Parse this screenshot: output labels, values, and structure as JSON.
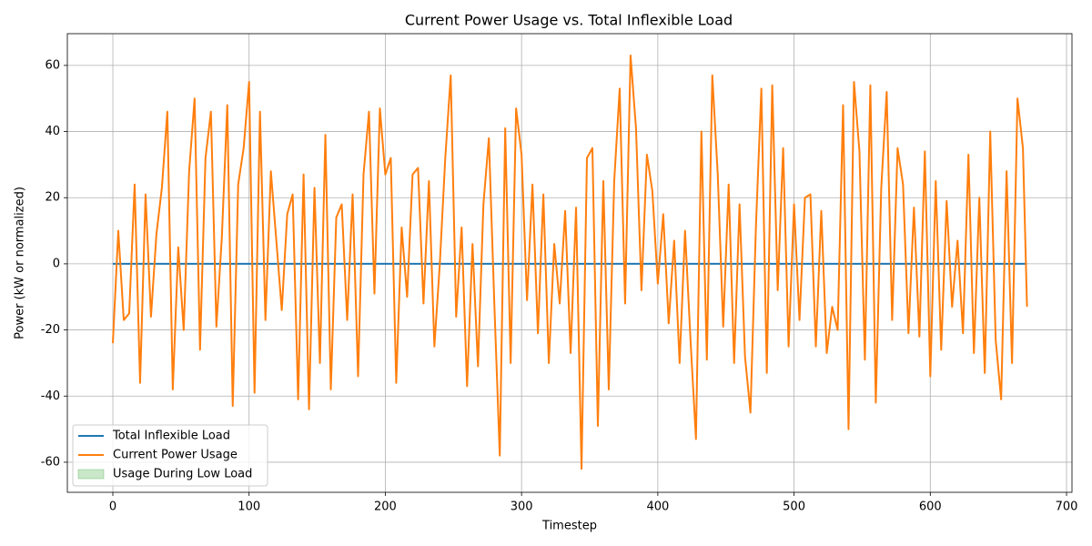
{
  "chart_data": {
    "type": "line",
    "title": "Current Power Usage vs. Total Inflexible Load",
    "x_label": "Timestep",
    "y_label": "Power (kW or normalized)",
    "x": [
      0,
      4,
      8,
      12,
      16,
      20,
      24,
      28,
      32,
      36,
      40,
      44,
      48,
      52,
      56,
      60,
      64,
      68,
      72,
      76,
      80,
      84,
      88,
      92,
      96,
      100,
      104,
      108,
      112,
      116,
      120,
      124,
      128,
      132,
      136,
      140,
      144,
      148,
      152,
      156,
      160,
      164,
      168,
      172,
      176,
      180,
      184,
      188,
      192,
      196,
      200,
      204,
      208,
      212,
      216,
      220,
      224,
      228,
      232,
      236,
      240,
      244,
      248,
      252,
      256,
      260,
      264,
      268,
      272,
      276,
      280,
      284,
      288,
      292,
      296,
      300,
      304,
      308,
      312,
      316,
      320,
      324,
      328,
      332,
      336,
      340,
      344,
      348,
      352,
      356,
      360,
      364,
      368,
      372,
      376,
      380,
      384,
      388,
      392,
      396,
      400,
      404,
      408,
      412,
      416,
      420,
      424,
      428,
      432,
      436,
      440,
      444,
      448,
      452,
      456,
      460,
      464,
      468,
      472,
      476,
      480,
      484,
      488,
      492,
      496,
      500,
      504,
      508,
      512,
      516,
      520,
      524,
      528,
      532,
      536,
      540,
      544,
      548,
      552,
      556,
      560,
      564,
      568,
      572,
      576,
      580,
      584,
      588,
      592,
      596,
      600,
      604,
      608,
      612,
      616,
      620,
      624,
      628,
      632,
      636,
      640,
      644,
      648,
      652,
      656,
      660,
      664,
      668,
      671
    ],
    "series": [
      {
        "name": "Total Inflexible Load",
        "color": "#1f77b4",
        "values": [
          0,
          0,
          0,
          0,
          0,
          0,
          0,
          0,
          0,
          0,
          0,
          0,
          0,
          0,
          0,
          0,
          0,
          0,
          0,
          0,
          0,
          0,
          0,
          0,
          0,
          0,
          0,
          0,
          0,
          0,
          0,
          0,
          0,
          0,
          0,
          0,
          0,
          0,
          0,
          0,
          0,
          0,
          0,
          0,
          0,
          0,
          0,
          0,
          0,
          0,
          0,
          0,
          0,
          0,
          0,
          0,
          0,
          0,
          0,
          0,
          0,
          0,
          0,
          0,
          0,
          0,
          0,
          0,
          0,
          0,
          0,
          0,
          0,
          0,
          0,
          0,
          0,
          0,
          0,
          0,
          0,
          0,
          0,
          0,
          0,
          0,
          0,
          0,
          0,
          0,
          0,
          0,
          0,
          0,
          0,
          0,
          0,
          0,
          0,
          0,
          0,
          0,
          0,
          0,
          0,
          0,
          0,
          0,
          0,
          0,
          0,
          0,
          0,
          0,
          0,
          0,
          0,
          0,
          0,
          0,
          0,
          0,
          0,
          0,
          0,
          0,
          0,
          0,
          0,
          0,
          0,
          0,
          0,
          0,
          0,
          0,
          0,
          0,
          0,
          0,
          0,
          0,
          0,
          0,
          0,
          0,
          0,
          0,
          0,
          0,
          0,
          0,
          0,
          0,
          0,
          0,
          0,
          0,
          0,
          0,
          0,
          0,
          0,
          0,
          0,
          0,
          0,
          0,
          0
        ]
      },
      {
        "name": "Current Power Usage",
        "color": "#ff7f0e",
        "values": [
          -24,
          10,
          -17,
          -15,
          24,
          -36,
          21,
          -16,
          9,
          23,
          46,
          -38,
          5,
          -20,
          28,
          50,
          -26,
          32,
          46,
          -19,
          8,
          48,
          -43,
          24,
          35,
          55,
          -39,
          46,
          -17,
          28,
          7,
          -14,
          15,
          21,
          -41,
          27,
          -44,
          23,
          -30,
          39,
          -38,
          14,
          18,
          -17,
          21,
          -34,
          27,
          46,
          -9,
          47,
          27,
          32,
          -36,
          11,
          -10,
          27,
          29,
          -12,
          25,
          -25,
          0,
          32,
          57,
          -16,
          11,
          -37,
          6,
          -31,
          18,
          38,
          -12,
          -58,
          41,
          -30,
          47,
          33,
          -11,
          24,
          -21,
          21,
          -30,
          6,
          -12,
          16,
          -27,
          17,
          -62,
          32,
          35,
          -49,
          25,
          -38,
          25,
          53,
          -12,
          63,
          41,
          -8,
          33,
          22,
          -6,
          15,
          -18,
          7,
          -30,
          10,
          -23,
          -53,
          40,
          -29,
          57,
          27,
          -19,
          24,
          -30,
          18,
          -28,
          -45,
          11,
          53,
          -33,
          54,
          -8,
          35,
          -25,
          18,
          -17,
          20,
          21,
          -25,
          16,
          -27,
          -13,
          -20,
          48,
          -50,
          55,
          34,
          -29,
          54,
          -42,
          23,
          52,
          -17,
          35,
          24,
          -21,
          17,
          -22,
          34,
          -34,
          25,
          -26,
          19,
          -13,
          7,
          -21,
          33,
          -27,
          20,
          -33,
          40,
          -23,
          -41,
          28,
          -30,
          50,
          35,
          -13
        ]
      },
      {
        "name": "Usage During Low Load",
        "color": "#2ca02c",
        "fill": true
      }
    ],
    "xlim": [
      -33.4,
      704
    ],
    "ylim": [
      -69.1,
      69.6
    ],
    "xticks": [
      0,
      100,
      200,
      300,
      400,
      500,
      600,
      700
    ],
    "yticks": [
      -60,
      -40,
      -20,
      0,
      20,
      40,
      60
    ],
    "grid": true,
    "legend": "lower left"
  }
}
